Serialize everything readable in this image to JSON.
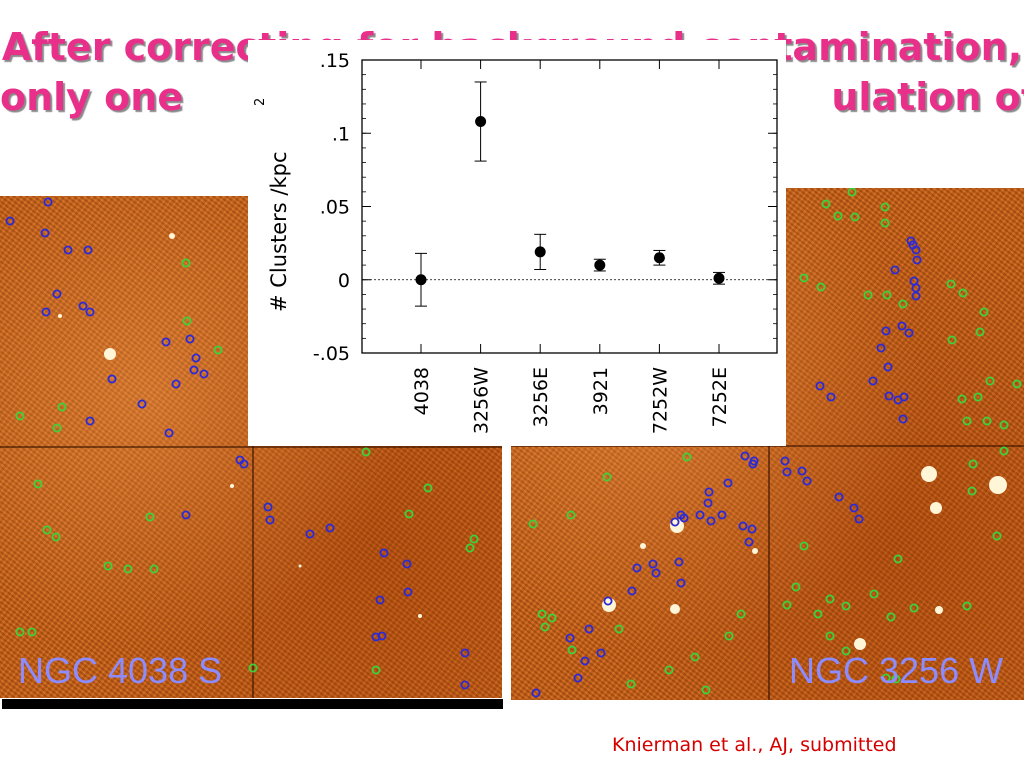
{
  "slide": {
    "title_line1": "After correcting for background contamination,",
    "title_line2": "only one                                                 ulation of",
    "citation": "Knierman et al., AJ, submitted"
  },
  "images": [
    {
      "label": "NGC 4038 S"
    },
    {
      "label": "NGC 3256 W"
    }
  ],
  "colors": {
    "title": "#e8308a",
    "image_label": "#8c8cff",
    "citation": "#d40000",
    "blue_marker": "#2a2ad8",
    "green_marker": "#3cd23c",
    "image_base": "#c8651c"
  },
  "chart_data": {
    "type": "scatter",
    "title": "",
    "xlabel": "",
    "ylabel": "# Clusters /kpc",
    "ylabel_superscript": "2",
    "categories": [
      "4038",
      "3256W",
      "3256E",
      "3921",
      "7252W",
      "7252E"
    ],
    "values": [
      0.0,
      0.108,
      0.019,
      0.01,
      0.015,
      0.001
    ],
    "error_low": [
      0.018,
      0.027,
      0.012,
      0.004,
      0.005,
      0.004
    ],
    "error_high": [
      0.018,
      0.027,
      0.012,
      0.004,
      0.005,
      0.004
    ],
    "ylim": [
      -0.05,
      0.15
    ],
    "yticks": [
      -0.05,
      0,
      0.05,
      0.1,
      0.15
    ],
    "ytick_labels": [
      "-.05",
      "0",
      ".05",
      ".1",
      ".15"
    ],
    "zero_line": "dotted",
    "grid": false
  }
}
